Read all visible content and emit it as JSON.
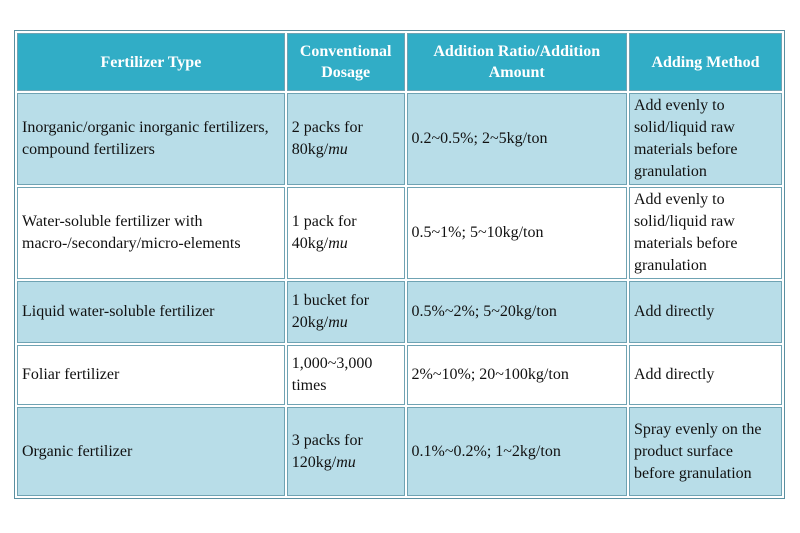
{
  "table": {
    "header": [
      "Fertilizer Type",
      "Conventional Dosage",
      "Addition Ratio/Addition Amount",
      "Adding Method"
    ],
    "rows": [
      [
        {
          "text": "Inorganic/organic inorganic fertilizers, compound fertilizers"
        },
        {
          "text": "2 packs for 80kg/",
          "em": "mu"
        },
        {
          "text": "0.2~0.5%; 2~5kg/ton"
        },
        {
          "text": "Add evenly to solid/liquid raw materials before granulation"
        }
      ],
      [
        {
          "text": "Water-soluble fertilizer with macro-/secondary/micro-elements"
        },
        {
          "text": "1 pack for 40kg/",
          "em": "mu"
        },
        {
          "text": "0.5~1%; 5~10kg/ton"
        },
        {
          "text": "Add evenly to solid/liquid raw materials before granulation"
        }
      ],
      [
        {
          "text": "Liquid water-soluble fertilizer"
        },
        {
          "text": "1 bucket for 20kg/",
          "em": "mu"
        },
        {
          "text": "0.5%~2%; 5~20kg/ton"
        },
        {
          "text": "Add directly"
        }
      ],
      [
        {
          "text": "Foliar fertilizer"
        },
        {
          "text": "1,000~3,000 times"
        },
        {
          "text": "2%~10%; 20~100kg/ton"
        },
        {
          "text": "Add directly"
        }
      ],
      [
        {
          "text": "Organic fertilizer"
        },
        {
          "text": "3 packs for 120kg/",
          "em": "mu"
        },
        {
          "text": "0.1%~0.2%; 1~2kg/ton"
        },
        {
          "text": "Spray evenly on the product surface before granulation"
        }
      ]
    ]
  }
}
